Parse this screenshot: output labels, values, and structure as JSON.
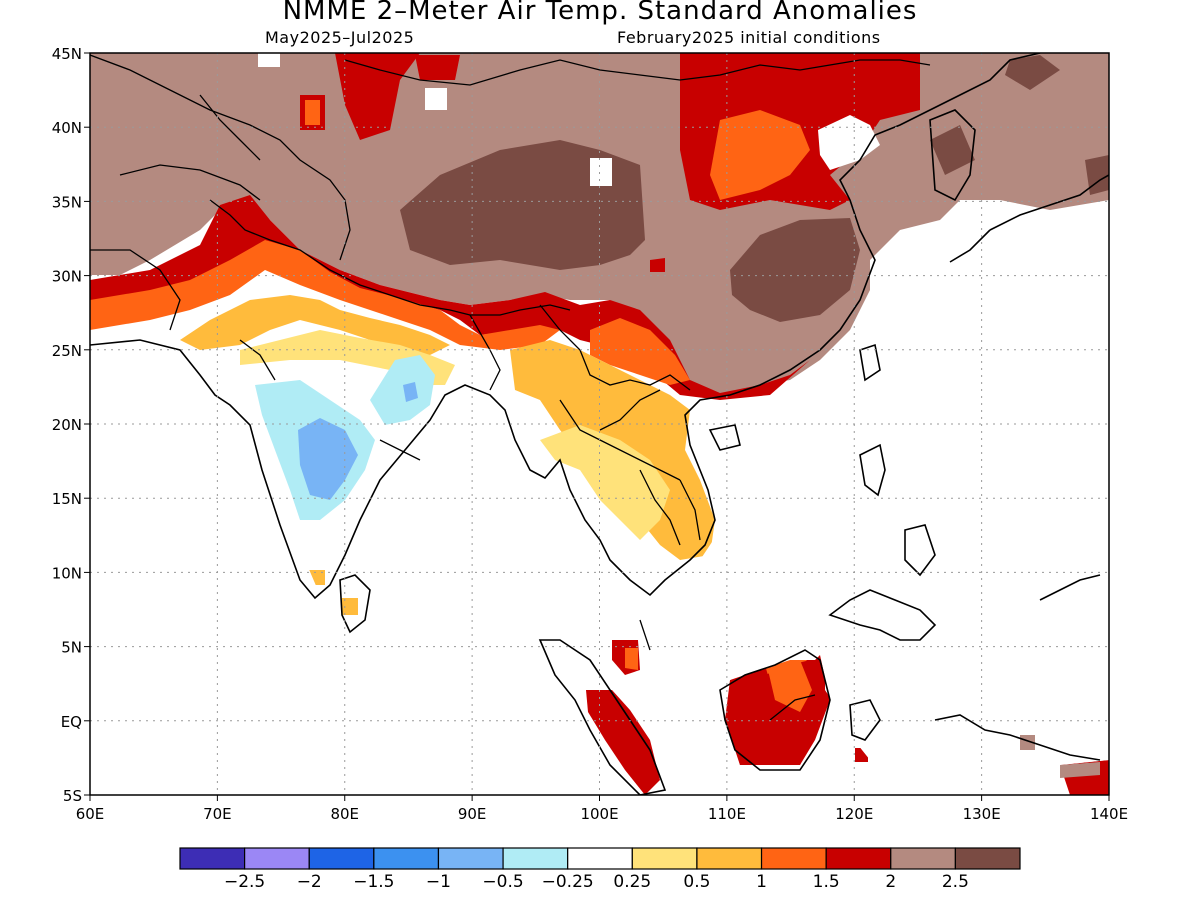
{
  "title": "NMME 2–Meter Air Temp. Standard Anomalies",
  "subtitle_left": "May2025–Jul2025",
  "subtitle_right": "February2025 initial conditions",
  "map": {
    "lat_labels": [
      "45N",
      "40N",
      "35N",
      "30N",
      "25N",
      "20N",
      "15N",
      "10N",
      "5N",
      "EQ",
      "5S"
    ],
    "lon_labels": [
      "60E",
      "70E",
      "80E",
      "90E",
      "100E",
      "110E",
      "120E",
      "130E",
      "140E"
    ],
    "grid": "dotted"
  },
  "colorbar": {
    "colors": [
      "#3d2db5",
      "#9b87f5",
      "#1e64e6",
      "#3c91f0",
      "#78b4f5",
      "#b0ecf5",
      "#ffffff",
      "#ffe27a",
      "#ffbb3c",
      "#ff6414",
      "#c80000",
      "#b48a80",
      "#7a4b43"
    ],
    "labels": [
      "−2.5",
      "−2",
      "−1.5",
      "−1",
      "−0.5",
      "−0.25",
      "0.25",
      "0.5",
      "1",
      "1.5",
      "2",
      "2.5"
    ]
  }
}
